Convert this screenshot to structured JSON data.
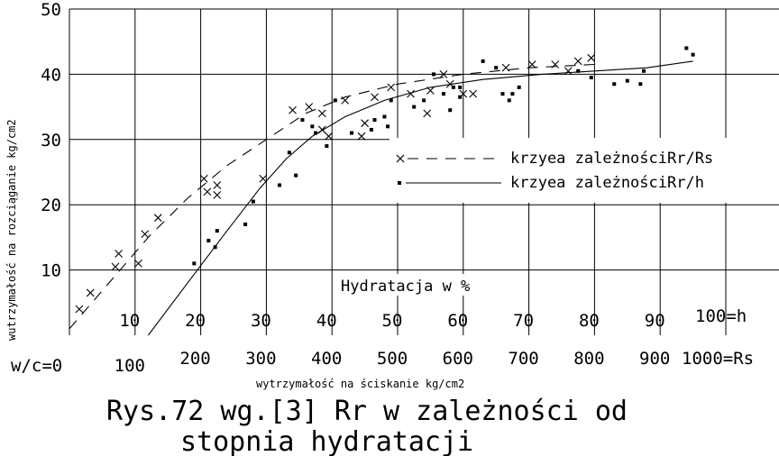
{
  "chart_data": {
    "type": "scatter",
    "title": "Rys.72 wg.[3] Rr w zależności od",
    "subtitle": "stopnia hydratacji",
    "xlabel": "wytrzymałość na ściskanie kg/cm2",
    "ylabel": "wutrzymałość na rozciąganie kg/cm2",
    "inner_label": "Hydratacja w %",
    "ylim": [
      0,
      50
    ],
    "xlim": [
      0,
      1000
    ],
    "grid": true,
    "x_axis_rs": {
      "prefix": "w/c=0",
      "ticks": [
        100,
        200,
        300,
        400,
        500,
        600,
        700,
        800,
        900
      ],
      "end_label": "1000=Rs"
    },
    "x_axis_h": {
      "ticks": [
        10,
        20,
        30,
        40,
        50,
        60,
        70,
        80,
        90
      ],
      "end_label": "100=h"
    },
    "y_ticks": [
      10,
      20,
      30,
      40,
      50
    ],
    "legend": [
      {
        "marker": "x",
        "line": "dashed",
        "label": "krzyea zależnościRr/Rs"
      },
      {
        "marker": "dot",
        "line": "solid",
        "label": "krzyea zależnościRr/h"
      }
    ],
    "series": [
      {
        "marker": "x",
        "points": [
          [
            15,
            4
          ],
          [
            32,
            6.5
          ],
          [
            70,
            10.5
          ],
          [
            75,
            12.5
          ],
          [
            105,
            11
          ],
          [
            115,
            15.5
          ],
          [
            135,
            18
          ],
          [
            205,
            24
          ],
          [
            210,
            22
          ],
          [
            225,
            23
          ],
          [
            225,
            21.5
          ],
          [
            295,
            24
          ],
          [
            340,
            34.5
          ],
          [
            365,
            35
          ],
          [
            385,
            34
          ],
          [
            385,
            31.5
          ],
          [
            395,
            30.5
          ],
          [
            420,
            36
          ],
          [
            445,
            30.5
          ],
          [
            450,
            32.5
          ],
          [
            465,
            36.5
          ],
          [
            490,
            38
          ],
          [
            520,
            37
          ],
          [
            545,
            34
          ],
          [
            550,
            37.5
          ],
          [
            570,
            40
          ],
          [
            580,
            38.5
          ],
          [
            600,
            37
          ],
          [
            615,
            37
          ],
          [
            665,
            41
          ],
          [
            705,
            41.5
          ],
          [
            740,
            41.5
          ],
          [
            760,
            40.5
          ],
          [
            775,
            42
          ],
          [
            795,
            42.5
          ]
        ]
      },
      {
        "marker": "dot",
        "points": [
          [
            190,
            11
          ],
          [
            212,
            14.5
          ],
          [
            222,
            13.5
          ],
          [
            225,
            16
          ],
          [
            268,
            17
          ],
          [
            280,
            20.5
          ],
          [
            320,
            23
          ],
          [
            335,
            28
          ],
          [
            345,
            24.5
          ],
          [
            355,
            33
          ],
          [
            370,
            32
          ],
          [
            375,
            31
          ],
          [
            392,
            29
          ],
          [
            405,
            36
          ],
          [
            430,
            31
          ],
          [
            460,
            31.5
          ],
          [
            465,
            33
          ],
          [
            480,
            33.5
          ],
          [
            485,
            32
          ],
          [
            490,
            36
          ],
          [
            525,
            35
          ],
          [
            540,
            36
          ],
          [
            555,
            40
          ],
          [
            570,
            37
          ],
          [
            580,
            34.5
          ],
          [
            585,
            38
          ],
          [
            595,
            36.5
          ],
          [
            595,
            38
          ],
          [
            630,
            42
          ],
          [
            650,
            41
          ],
          [
            660,
            37
          ],
          [
            670,
            36
          ],
          [
            675,
            37
          ],
          [
            685,
            38
          ],
          [
            775,
            40.5
          ],
          [
            795,
            39.5
          ],
          [
            830,
            38.5
          ],
          [
            850,
            39
          ],
          [
            870,
            38.5
          ],
          [
            875,
            40.5
          ],
          [
            940,
            44
          ],
          [
            950,
            43
          ]
        ]
      },
      {
        "line": "dashed",
        "points": [
          [
            0,
            1
          ],
          [
            60,
            8
          ],
          [
            120,
            15
          ],
          [
            180,
            21
          ],
          [
            240,
            26
          ],
          [
            300,
            30
          ],
          [
            360,
            34
          ],
          [
            420,
            36.5
          ],
          [
            500,
            38.5
          ],
          [
            600,
            40
          ],
          [
            700,
            41
          ],
          [
            800,
            41.5
          ]
        ]
      },
      {
        "line": "solid",
        "points": [
          [
            120,
            0
          ],
          [
            180,
            8
          ],
          [
            240,
            16
          ],
          [
            290,
            22.5
          ],
          [
            330,
            27
          ],
          [
            370,
            30.5
          ],
          [
            420,
            33.5
          ],
          [
            480,
            36
          ],
          [
            550,
            38
          ],
          [
            630,
            39.2
          ],
          [
            720,
            40
          ],
          [
            800,
            40.5
          ],
          [
            880,
            41
          ],
          [
            950,
            42
          ]
        ]
      }
    ]
  }
}
